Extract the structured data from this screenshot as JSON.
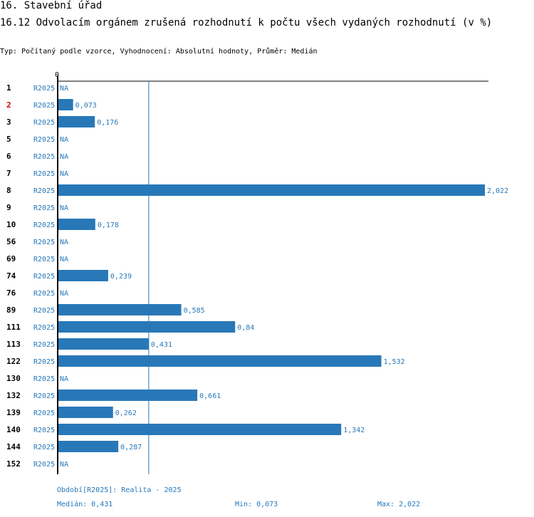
{
  "header": {
    "section": "16. Stavební úřad",
    "title": "16.12 Odvolacím orgánem zrušená rozhodnutí k počtu všech vydaných rozhodnutí (v %)",
    "subtitle": "Typ: Počítaný podle vzorce, Vyhodnocení: Absolutní hodnoty, Průměr: Medián"
  },
  "colors": {
    "bar": "#2878b8",
    "highlight": "#cc0000",
    "text": "#000000"
  },
  "chart_data": {
    "type": "bar",
    "orientation": "horizontal",
    "axis_zero_label": "0",
    "series_label": "R2025",
    "highlight_category": "2",
    "categories": [
      "1",
      "2",
      "3",
      "5",
      "6",
      "7",
      "8",
      "9",
      "10",
      "56",
      "69",
      "74",
      "76",
      "89",
      "111",
      "113",
      "122",
      "130",
      "132",
      "139",
      "140",
      "144",
      "152"
    ],
    "values": [
      null,
      0.073,
      0.176,
      null,
      null,
      null,
      2.022,
      null,
      0.178,
      null,
      null,
      0.239,
      null,
      0.585,
      0.84,
      0.431,
      1.532,
      null,
      0.661,
      0.262,
      1.342,
      0.287,
      null
    ],
    "value_labels": [
      "NA",
      "0,073",
      "0,176",
      "NA",
      "NA",
      "NA",
      "2,022",
      "NA",
      "0,178",
      "NA",
      "NA",
      "0,239",
      "NA",
      "0,585",
      "0,84",
      "0,431",
      "1,532",
      "NA",
      "0,661",
      "0,262",
      "1,342",
      "0,287",
      "NA"
    ],
    "xlim": [
      0,
      2.022
    ],
    "reference_line": 0.431
  },
  "footer": {
    "period": "Období[R2025]: Realita - 2025",
    "median": "Medián: 0,431",
    "min": "Min: 0,073",
    "max": "Max: 2,022"
  }
}
